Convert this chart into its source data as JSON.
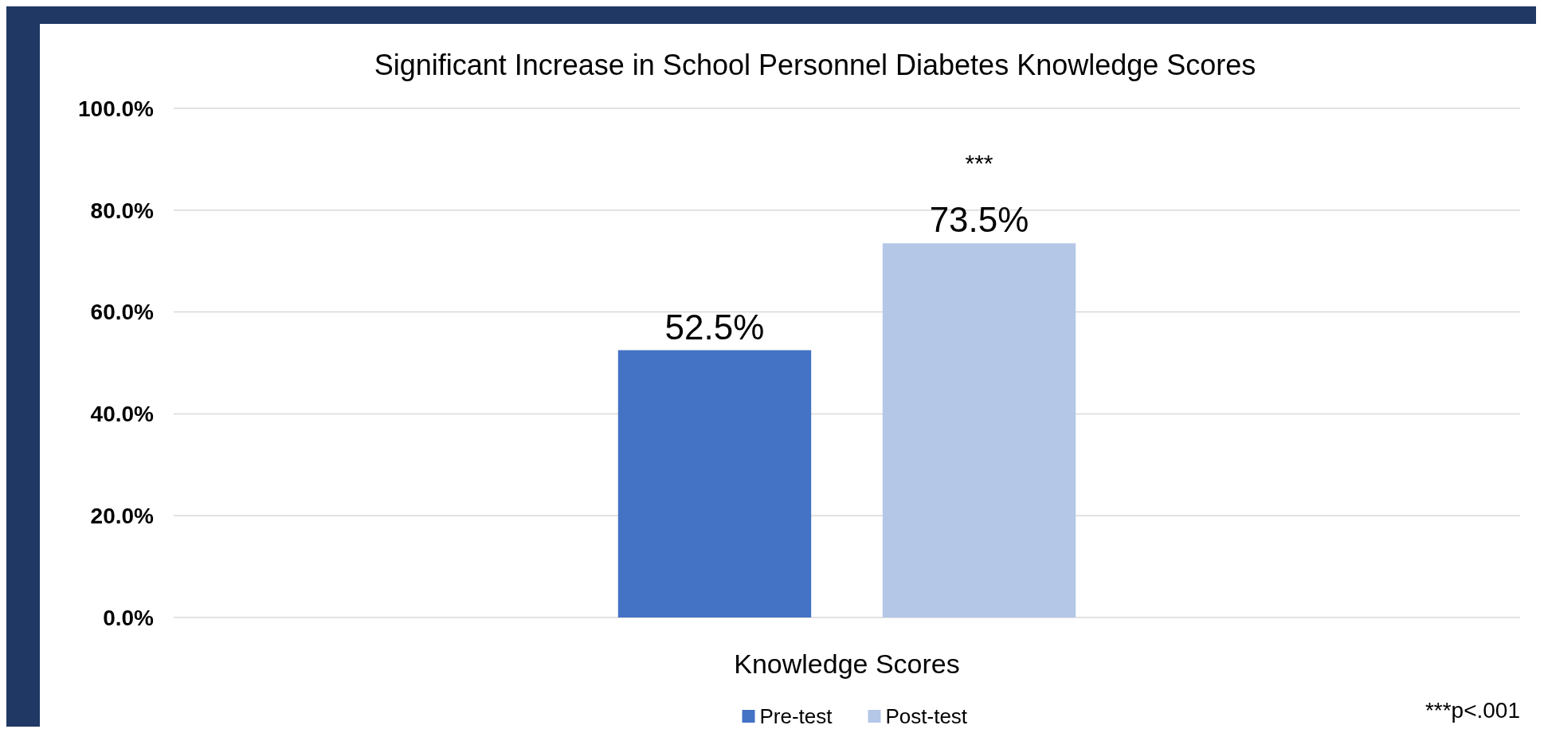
{
  "chart_data": {
    "type": "bar",
    "title": "Significant Increase in School Personnel Diabetes Knowledge Scores",
    "categories": [
      "Knowledge Scores"
    ],
    "series": [
      {
        "name": "Pre-test",
        "color": "#4472c4",
        "values": [
          52.5
        ],
        "value_labels": [
          "52.5%"
        ]
      },
      {
        "name": "Post-test",
        "color": "#b4c7e7",
        "values": [
          73.5
        ],
        "value_labels": [
          "73.5%"
        ]
      }
    ],
    "ylim": [
      0,
      100
    ],
    "yticks": [
      {
        "value": 0,
        "label": "0.0%"
      },
      {
        "value": 20,
        "label": "20.0%"
      },
      {
        "value": 40,
        "label": "40.0%"
      },
      {
        "value": 60,
        "label": "60.0%"
      },
      {
        "value": 80,
        "label": "80.0%"
      },
      {
        "value": 100,
        "label": "100.0%"
      }
    ],
    "grid": "y",
    "legend": "bottom",
    "annotations": [
      "***",
      "***p<.001"
    ]
  }
}
